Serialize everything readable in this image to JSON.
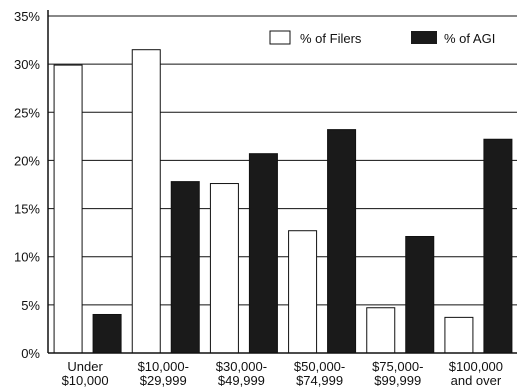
{
  "chart_data": {
    "type": "bar",
    "categories": [
      [
        "Under",
        "$10,000"
      ],
      [
        "$10,000-",
        "$29,999"
      ],
      [
        "$30,000-",
        "$49,999"
      ],
      [
        "$50,000-",
        "$74,999"
      ],
      [
        "$75,000-",
        "$99,999"
      ],
      [
        "$100,000",
        "and over"
      ]
    ],
    "series": [
      {
        "name": "% of Filers",
        "color": "#ffffff",
        "values": [
          29.9,
          31.5,
          17.6,
          12.7,
          4.7,
          3.7
        ]
      },
      {
        "name": "% of AGI",
        "color": "#1a1a1a",
        "values": [
          4.0,
          17.8,
          20.7,
          23.2,
          12.1,
          22.2
        ]
      }
    ],
    "yticks": [
      "0%",
      "5%",
      "10%",
      "15%",
      "20%",
      "25%",
      "30%",
      "35%"
    ],
    "ylim": [
      0,
      35
    ],
    "title": "",
    "xlabel": "",
    "ylabel": "",
    "grid": true,
    "legend_position": "top-right"
  }
}
